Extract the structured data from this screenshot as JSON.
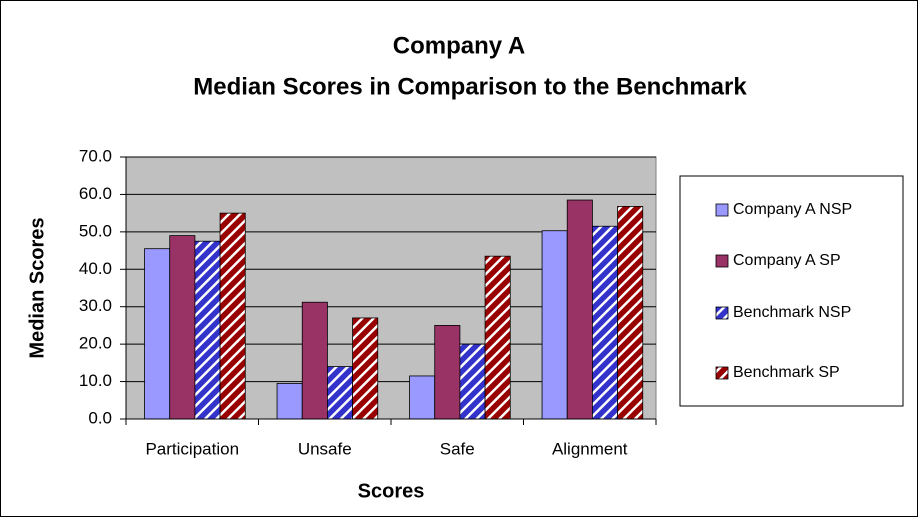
{
  "chart_data": {
    "type": "bar",
    "title": "Company A",
    "subtitle": "Median Scores in Comparison to the Benchmark",
    "x_label": "Scores",
    "y_label": "Median Scores",
    "categories": [
      "Participation",
      "Unsafe",
      "Safe",
      "Alignment"
    ],
    "series": [
      {
        "name": "Company A NSP",
        "color": "#9999ff",
        "hatched": false,
        "values": [
          45.5,
          9.5,
          11.5,
          50.3
        ]
      },
      {
        "name": "Company A SP",
        "color": "#993366",
        "hatched": false,
        "values": [
          49,
          31.2,
          25,
          58.5
        ]
      },
      {
        "name": "Benchmark NSP",
        "color": "#3333cc",
        "hatched": true,
        "values": [
          47.5,
          14,
          20,
          51.5
        ]
      },
      {
        "name": "Benchmark SP",
        "color": "#990000",
        "hatched": true,
        "values": [
          55,
          27,
          43.5,
          56.8
        ]
      }
    ],
    "ylim": [
      0,
      70
    ],
    "yticks": [
      {
        "value": 0,
        "label": "0.0"
      },
      {
        "value": 10,
        "label": "10.0"
      },
      {
        "value": 20,
        "label": "20.0"
      },
      {
        "value": 30,
        "label": "30.0"
      },
      {
        "value": 40,
        "label": "40.0"
      },
      {
        "value": 50,
        "label": "50.0"
      },
      {
        "value": 60,
        "label": "60.0"
      },
      {
        "value": 70,
        "label": "70.0"
      }
    ],
    "grid": true,
    "legend": "right"
  }
}
